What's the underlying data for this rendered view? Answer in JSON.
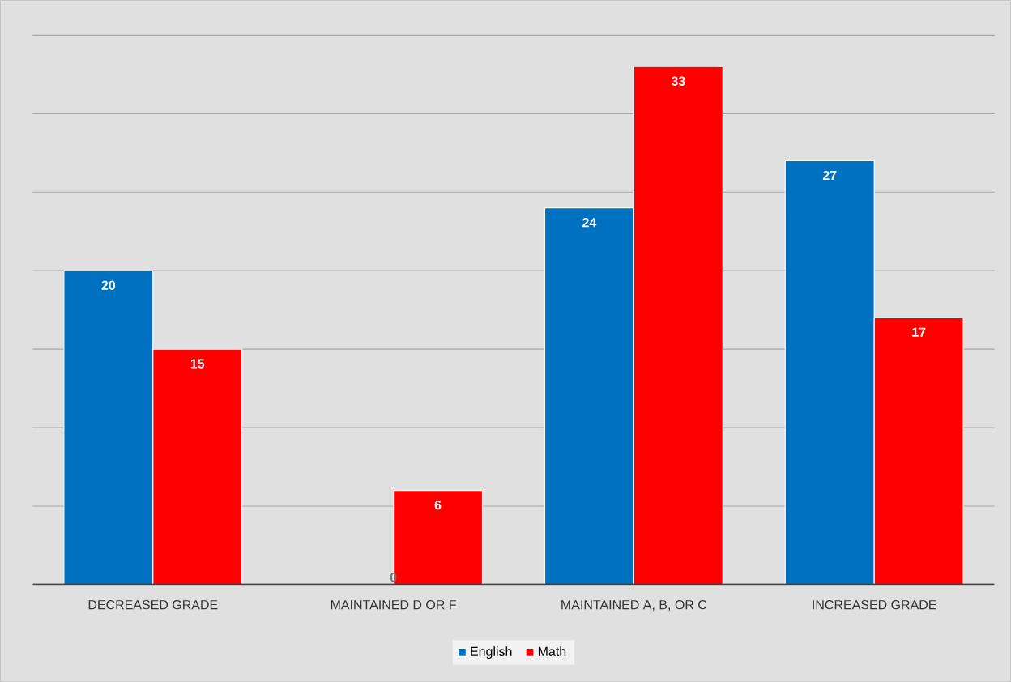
{
  "chart_data": {
    "type": "bar",
    "categories": [
      "DECREASED GRADE",
      "MAINTAINED D OR F",
      "MAINTAINED A, B, OR C",
      "INCREASED GRADE"
    ],
    "series": [
      {
        "name": "English",
        "color": "#0070c0",
        "values": [
          20,
          0,
          24,
          27
        ]
      },
      {
        "name": "Math",
        "color": "#ff0000",
        "values": [
          15,
          6,
          33,
          17
        ]
      }
    ],
    "ylim": [
      0,
      35
    ],
    "yticks": [
      {
        "value": 0,
        "label": null
      },
      {
        "value": 5,
        "label": null
      },
      {
        "value": 10,
        "label": null
      },
      {
        "value": 15,
        "label": null
      },
      {
        "value": 20,
        "label": null
      },
      {
        "value": 25,
        "label": null
      },
      {
        "value": 30,
        "label": null
      },
      {
        "value": 35,
        "label": null
      }
    ],
    "grid": "y",
    "tick_labels": "x",
    "data_labels": true,
    "legend": "bottom"
  }
}
